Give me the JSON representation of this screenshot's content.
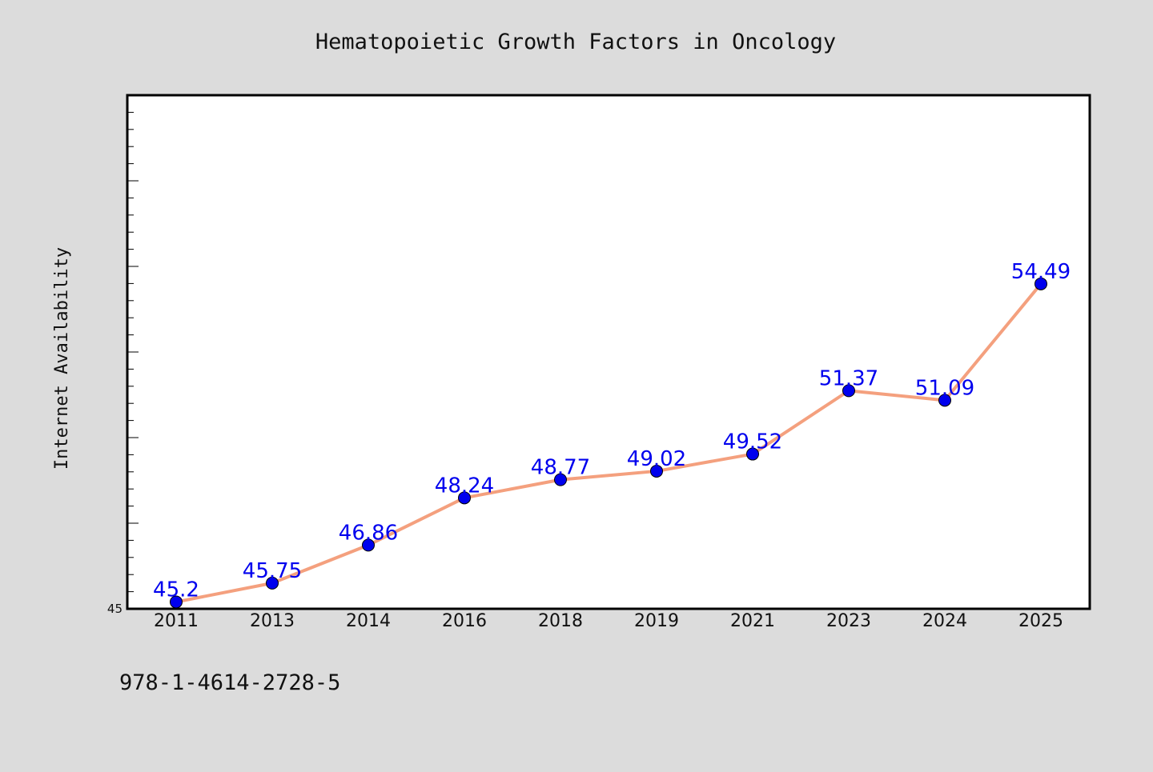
{
  "chart_data": {
    "type": "line",
    "title": "Hematopoietic Growth Factors in Oncology",
    "xlabel": "",
    "ylabel": "Internet Availability",
    "categories": [
      "2011",
      "2013",
      "2014",
      "2016",
      "2018",
      "2019",
      "2021",
      "2023",
      "2024",
      "2025"
    ],
    "series": [
      {
        "values": [
          45.2,
          45.75,
          46.86,
          48.24,
          48.77,
          49.02,
          49.52,
          51.37,
          51.09,
          54.49
        ],
        "labels": [
          "45.2",
          "45.75",
          "46.86",
          "48.24",
          "48.77",
          "49.02",
          "49.52",
          "51.37",
          "51.09",
          "54.49"
        ]
      }
    ],
    "ylim": [
      45,
      60
    ],
    "y_tick_labels": [
      "45"
    ],
    "grid": false,
    "colors": {
      "line": "#f4a07e",
      "marker": "#0000ee",
      "label": "#0000ee",
      "background": "#dcdcdc",
      "plot_background": "#ffffff"
    }
  },
  "footer": {
    "isbn": "978-1-4614-2728-5"
  }
}
